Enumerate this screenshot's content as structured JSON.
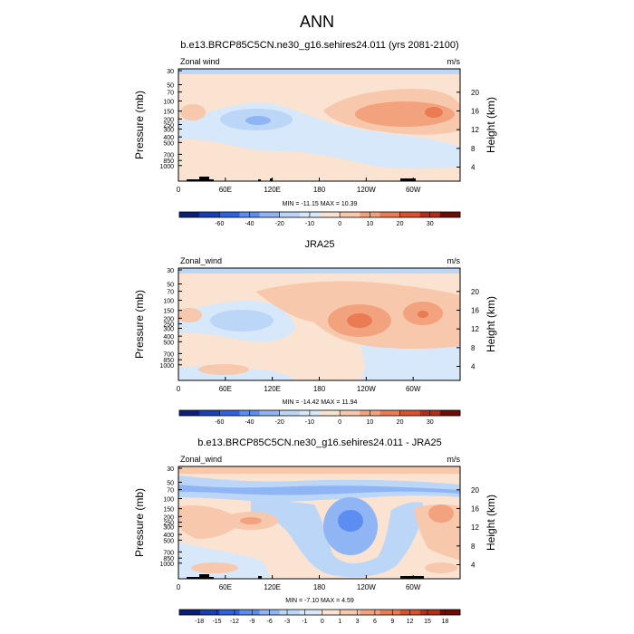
{
  "page_title": "ANN",
  "colors": {
    "cb_lo": [
      "#0a1f7a",
      "#1a3fb3",
      "#2f62e0",
      "#5b8ef0",
      "#8fb5f5",
      "#bcd6f7",
      "#d7e8fb"
    ],
    "cb_hi": [
      "#fbe3d2",
      "#f8c8ad",
      "#f2a37e",
      "#ea7b52",
      "#d9522e",
      "#b32e1a",
      "#6e0c05"
    ]
  },
  "chart_data": [
    {
      "type": "heatmap",
      "title": "b.e13.BRCP85C5CN.ne30_g16.sehires24.011 (yrs 2081-2100)",
      "var_label": "Zonal wind",
      "units": "m/s",
      "ylabel": "Pressure (mb)",
      "ylabel_right": "Height (km)",
      "xlim": [
        0,
        360
      ],
      "x_ticks": [
        "0",
        "60E",
        "120E",
        "180",
        "120W",
        "60W"
      ],
      "y_ticks": [
        "30",
        "50",
        "70",
        "100",
        "150",
        "200",
        "250",
        "300",
        "400",
        "500",
        "700",
        "850",
        "1000"
      ],
      "height_ticks": [
        "20",
        "16",
        "12",
        "8",
        "4"
      ],
      "minmax_label": "MIN = -11.15  MAX =  10.39",
      "colorbar_labels": [
        "-60",
        "-40",
        "-20",
        "-10",
        "0",
        "10",
        "20",
        "30"
      ],
      "min": -11.15,
      "max": 10.39
    },
    {
      "type": "heatmap",
      "title": "JRA25",
      "var_label": "Zonal_wind",
      "units": "m/s",
      "ylabel": "Pressure (mb)",
      "ylabel_right": "Height (km)",
      "xlim": [
        0,
        360
      ],
      "x_ticks": [
        "0",
        "60E",
        "120E",
        "180",
        "120W",
        "60W"
      ],
      "y_ticks": [
        "30",
        "50",
        "70",
        "100",
        "150",
        "200",
        "250",
        "300",
        "400",
        "500",
        "700",
        "850",
        "1000"
      ],
      "height_ticks": [
        "20",
        "16",
        "12",
        "8",
        "4"
      ],
      "minmax_label": "MIN = -14.42  MAX =  11.94",
      "colorbar_labels": [
        "-60",
        "-40",
        "-20",
        "-10",
        "0",
        "10",
        "20",
        "30"
      ],
      "min": -14.42,
      "max": 11.94
    },
    {
      "type": "heatmap",
      "title": "b.e13.BRCP85C5CN.ne30_g16.sehires24.011 - JRA25",
      "var_label": "Zonal_wind",
      "units": "m/s",
      "ylabel": "Pressure (mb)",
      "ylabel_right": "Height (km)",
      "xlim": [
        0,
        360
      ],
      "x_ticks": [
        "0",
        "60E",
        "120E",
        "180",
        "120W",
        "60W"
      ],
      "y_ticks": [
        "30",
        "50",
        "70",
        "100",
        "150",
        "200",
        "250",
        "300",
        "400",
        "500",
        "700",
        "850",
        "1000"
      ],
      "height_ticks": [
        "20",
        "16",
        "12",
        "8",
        "4"
      ],
      "minmax_label": "MIN = -7.10  MAX =  4.59",
      "colorbar_labels": [
        "-18",
        "-15",
        "-12",
        "-9",
        "-6",
        "-3",
        "-1",
        "0",
        "1",
        "3",
        "6",
        "9",
        "12",
        "15",
        "18"
      ],
      "min": -7.1,
      "max": 4.59
    }
  ]
}
